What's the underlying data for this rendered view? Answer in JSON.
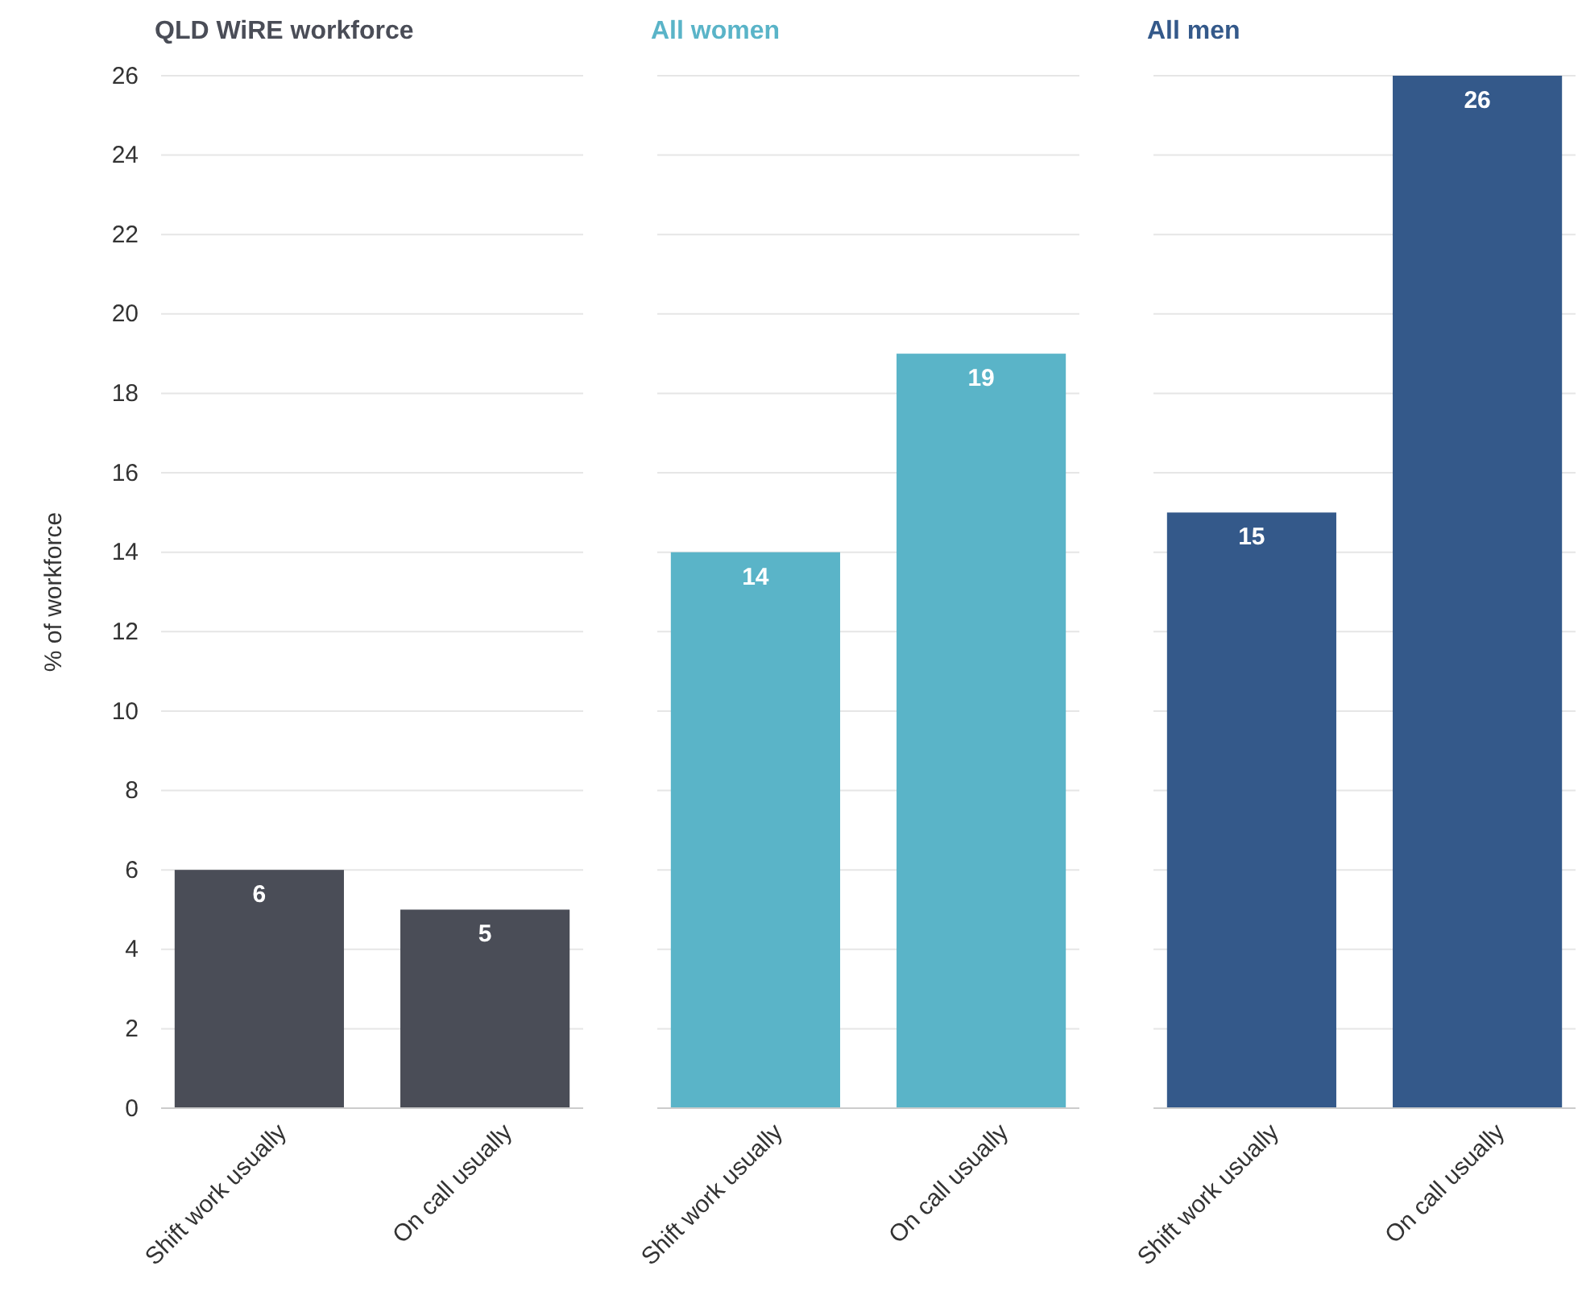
{
  "chart_data": [
    {
      "type": "bar",
      "title": "QLD WiRE workforce",
      "ylabel": "% of workforce",
      "categories": [
        "Shift work usually",
        "On call usually"
      ],
      "values": [
        6,
        5
      ],
      "color": "#4a4d57",
      "ylim": [
        0,
        26
      ],
      "yticks": [
        0,
        2,
        4,
        6,
        8,
        10,
        12,
        14,
        16,
        18,
        20,
        22,
        24,
        26
      ],
      "grid": "y",
      "data_labels": true
    },
    {
      "type": "bar",
      "title": "All women",
      "categories": [
        "Shift work usually",
        "On call usually"
      ],
      "values": [
        14,
        19
      ],
      "color": "#5ab4c8",
      "ylim": [
        0,
        26
      ],
      "yticks": [
        0,
        2,
        4,
        6,
        8,
        10,
        12,
        14,
        16,
        18,
        20,
        22,
        24,
        26
      ],
      "grid": "y",
      "data_labels": true,
      "tick_labels": "x"
    },
    {
      "type": "bar",
      "title": "All men",
      "categories": [
        "Shift work usually",
        "On call usually"
      ],
      "values": [
        15,
        26
      ],
      "color": "#34598a",
      "ylim": [
        0,
        26
      ],
      "yticks": [
        0,
        2,
        4,
        6,
        8,
        10,
        12,
        14,
        16,
        18,
        20,
        22,
        24,
        26
      ],
      "grid": "y",
      "data_labels": true,
      "tick_labels": "x"
    }
  ]
}
